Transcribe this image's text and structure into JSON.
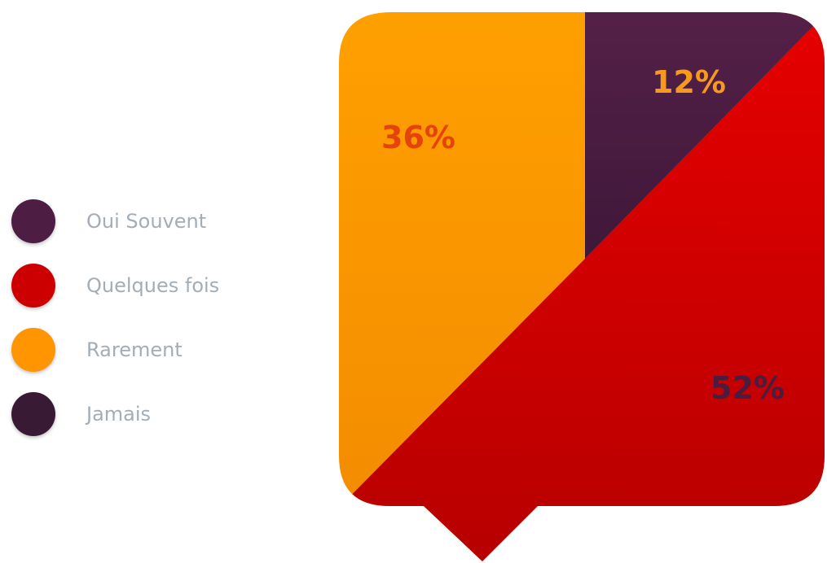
{
  "colors": {
    "purple": "#4d1d44",
    "red": "#cc0000",
    "orange": "#ff9500",
    "dark_purple": "#391a34",
    "legend_text": "#a3adb6"
  },
  "legend": [
    {
      "label": "Oui Souvent",
      "color": "#4d1d44"
    },
    {
      "label": "Quelques fois",
      "color": "#cc0000"
    },
    {
      "label": "Rarement",
      "color": "#ff9500"
    },
    {
      "label": "Jamais",
      "color": "#391a34"
    }
  ],
  "chart_data": {
    "type": "pie",
    "title": "",
    "categories": [
      "Oui Souvent",
      "Quelques fois",
      "Rarement",
      "Jamais"
    ],
    "values": [
      12,
      52,
      36,
      0
    ],
    "value_labels": [
      "12%",
      "52%",
      "36%",
      ""
    ],
    "legend_position": "left"
  }
}
